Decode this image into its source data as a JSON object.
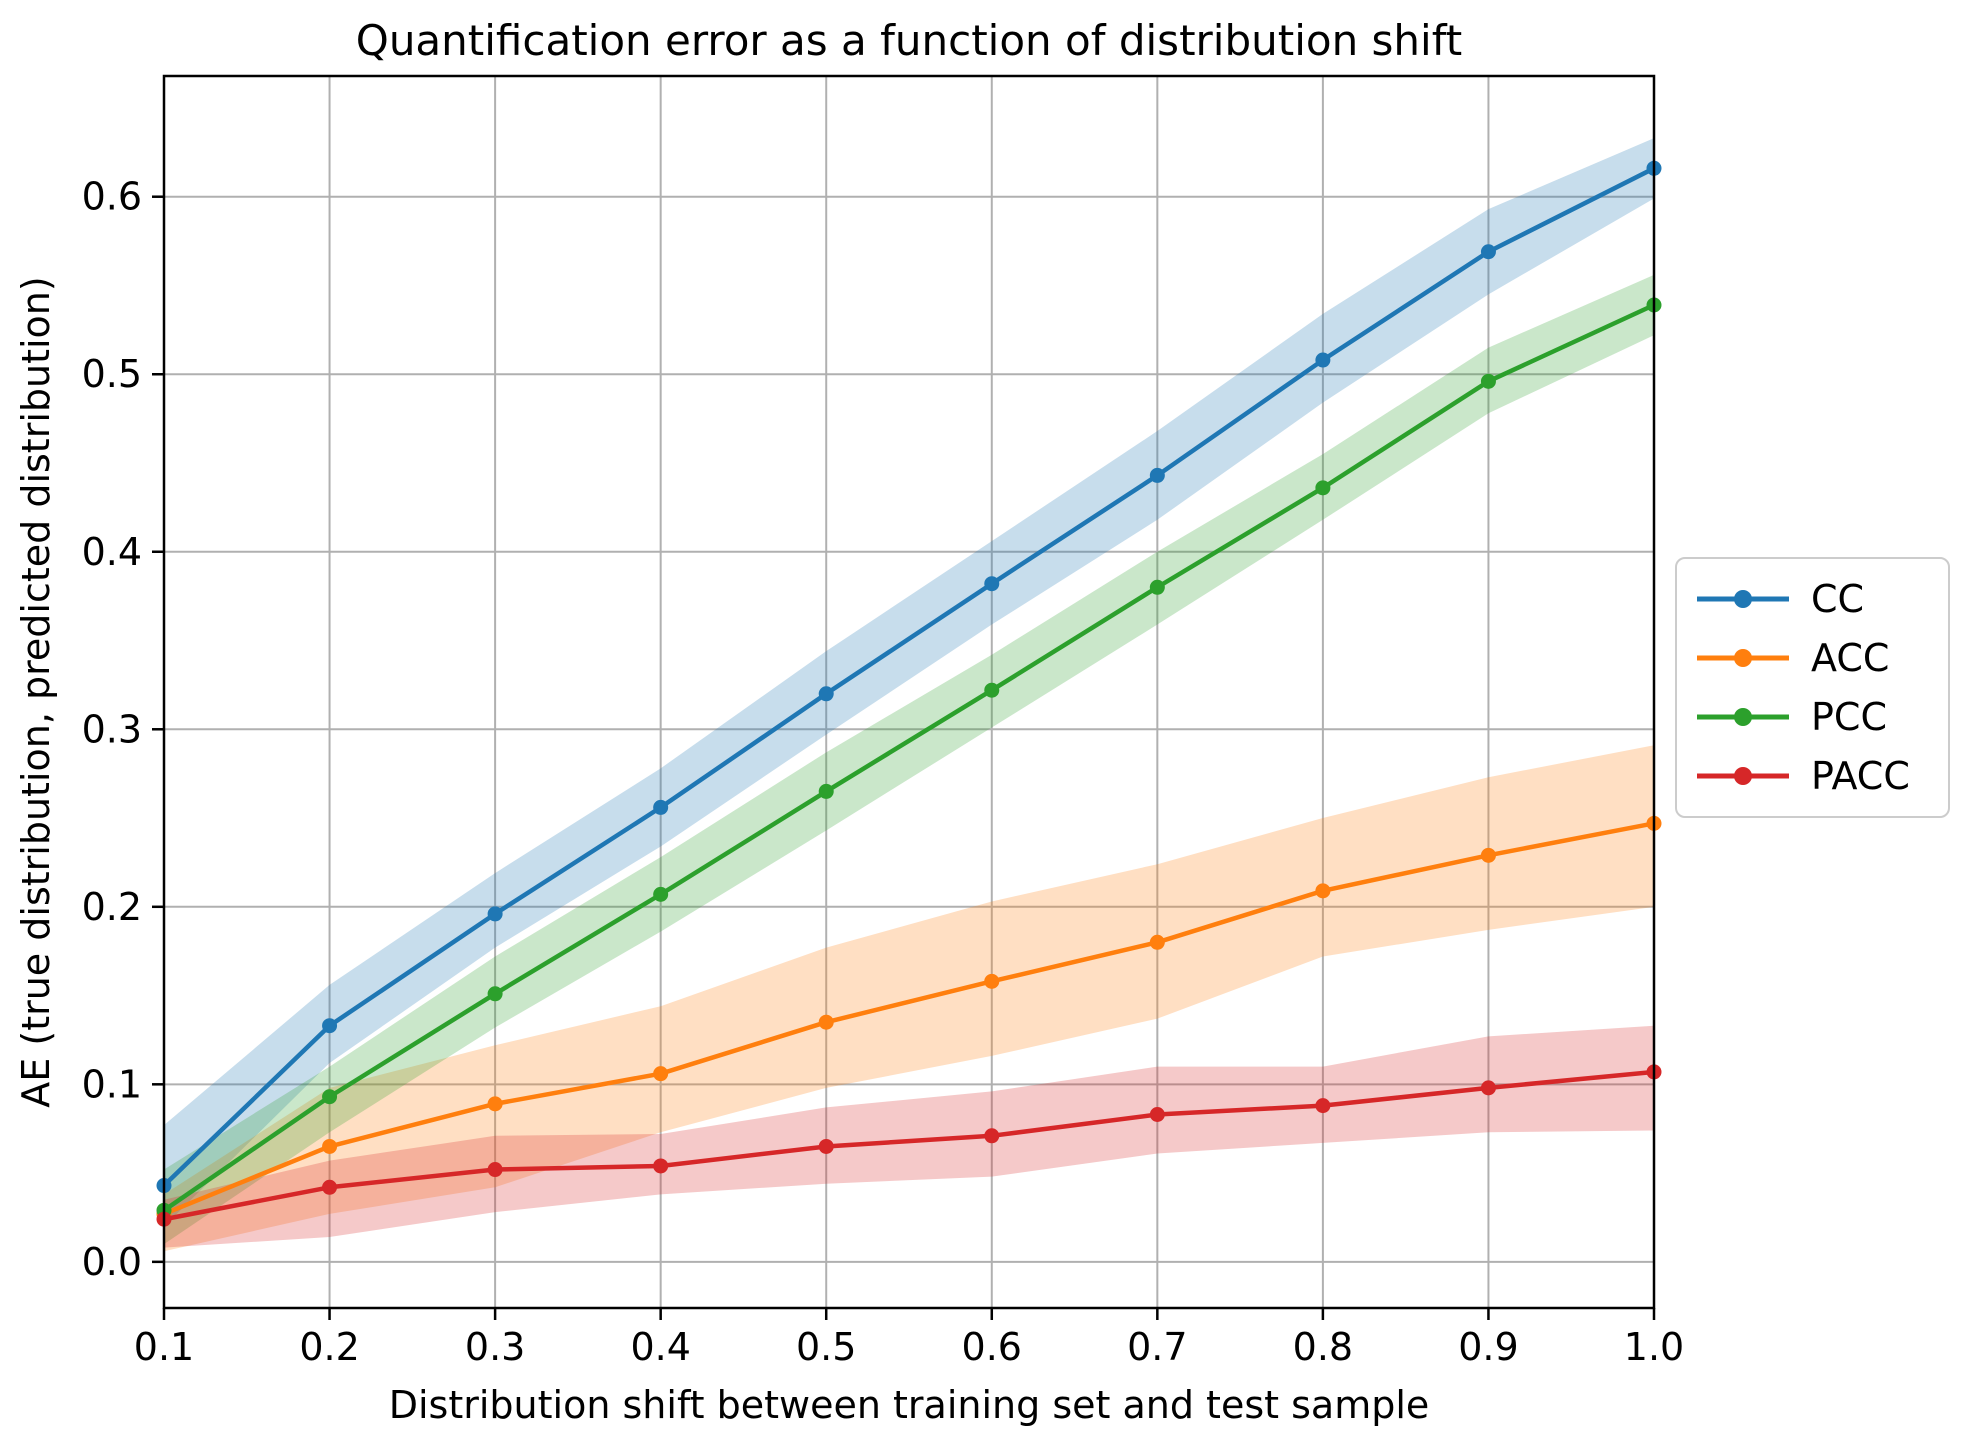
{
  "figure": {
    "title": "Quantification error as a function of distribution shift",
    "x_label": "Distribution shift between training set and test sample",
    "y_label": "AE (true distribution, predicted distribution)"
  },
  "style": {
    "grid_color": "#b0b0b0",
    "spine_color": "#000000",
    "tick_color": "#000000",
    "background": "#ffffff",
    "legend_border": "#cccccc",
    "band_alpha": 0.25
  },
  "chart_data": {
    "type": "line",
    "title": "Quantification error as a function of distribution shift",
    "xlabel": "Distribution shift between training set and test sample",
    "ylabel": "AE (true distribution, predicted distribution)",
    "grid": true,
    "legend_position": "right of axes, vertically centered",
    "xlim": [
      0.1,
      1.0
    ],
    "ylim": [
      -0.026,
      0.668
    ],
    "x": [
      0.1,
      0.2,
      0.3,
      0.4,
      0.5,
      0.6,
      0.7,
      0.8,
      0.9,
      1.0
    ],
    "x_tick_labels": [
      "0.1",
      "0.2",
      "0.3",
      "0.4",
      "0.5",
      "0.6",
      "0.7",
      "0.8",
      "0.9",
      "1.0"
    ],
    "y_ticks": [
      0.0,
      0.1,
      0.2,
      0.3,
      0.4,
      0.5,
      0.6
    ],
    "y_tick_labels": [
      "0.0",
      "0.1",
      "0.2",
      "0.3",
      "0.4",
      "0.5",
      "0.6"
    ],
    "series": [
      {
        "name": "CC",
        "color": "#1f77b4",
        "values": [
          0.043,
          0.133,
          0.196,
          0.256,
          0.32,
          0.382,
          0.443,
          0.508,
          0.569,
          0.616
        ],
        "band_lower": [
          0.02,
          0.112,
          0.177,
          0.234,
          0.297,
          0.359,
          0.418,
          0.484,
          0.545,
          0.599
        ],
        "band_upper": [
          0.077,
          0.156,
          0.219,
          0.278,
          0.344,
          0.406,
          0.468,
          0.534,
          0.593,
          0.633
        ]
      },
      {
        "name": "ACC",
        "color": "#ff7f0e",
        "values": [
          0.027,
          0.065,
          0.089,
          0.106,
          0.135,
          0.158,
          0.18,
          0.209,
          0.229,
          0.247
        ],
        "band_lower": [
          0.006,
          0.027,
          0.042,
          0.073,
          0.098,
          0.116,
          0.137,
          0.172,
          0.187,
          0.2
        ],
        "band_upper": [
          0.038,
          0.098,
          0.122,
          0.144,
          0.177,
          0.203,
          0.224,
          0.25,
          0.273,
          0.291
        ]
      },
      {
        "name": "PCC",
        "color": "#2ca02c",
        "values": [
          0.029,
          0.093,
          0.151,
          0.207,
          0.265,
          0.322,
          0.38,
          0.436,
          0.496,
          0.539
        ],
        "band_lower": [
          0.01,
          0.073,
          0.132,
          0.186,
          0.243,
          0.301,
          0.359,
          0.418,
          0.478,
          0.522
        ],
        "band_upper": [
          0.052,
          0.11,
          0.172,
          0.228,
          0.287,
          0.342,
          0.4,
          0.455,
          0.515,
          0.556
        ]
      },
      {
        "name": "PACC",
        "color": "#d62728",
        "values": [
          0.024,
          0.042,
          0.052,
          0.054,
          0.065,
          0.071,
          0.083,
          0.088,
          0.098,
          0.107
        ],
        "band_lower": [
          0.008,
          0.014,
          0.028,
          0.038,
          0.044,
          0.048,
          0.061,
          0.067,
          0.073,
          0.074
        ],
        "band_upper": [
          0.035,
          0.057,
          0.071,
          0.072,
          0.087,
          0.096,
          0.11,
          0.11,
          0.127,
          0.133
        ]
      }
    ]
  }
}
